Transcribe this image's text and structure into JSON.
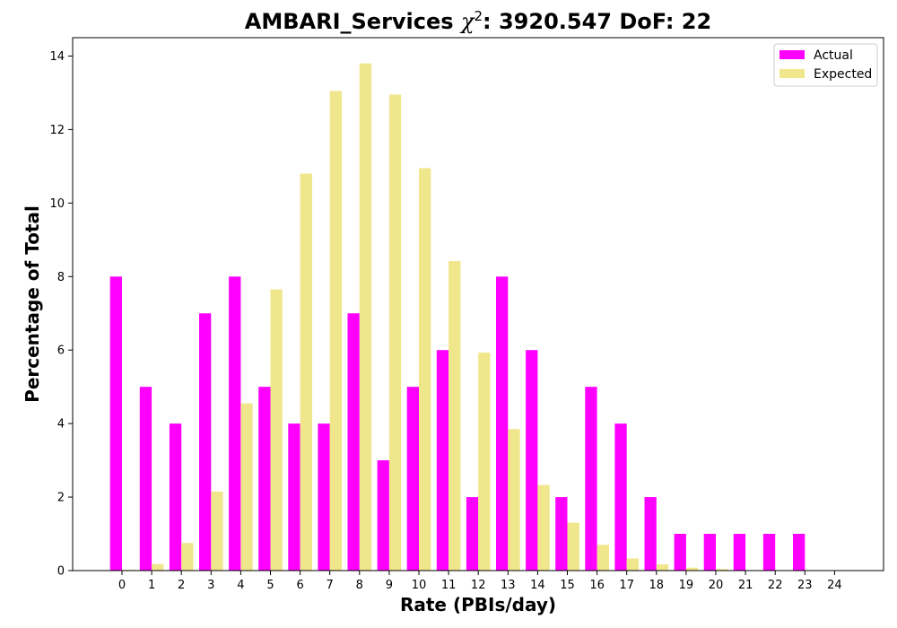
{
  "chart_data": {
    "type": "bar",
    "title_main": "AMBARI_Services ",
    "title_chi": "χ",
    "title_sup": "2",
    "title_rest": ": 3920.547 DoF: 22",
    "xlabel": "Rate (PBIs/day)",
    "ylabel": "Percentage of Total",
    "categories": [
      "0",
      "1",
      "2",
      "3",
      "4",
      "5",
      "6",
      "7",
      "8",
      "9",
      "10",
      "11",
      "12",
      "13",
      "14",
      "15",
      "16",
      "17",
      "18",
      "19",
      "20",
      "21",
      "22",
      "23",
      "24"
    ],
    "ylim": [
      0,
      14.5
    ],
    "yticks": [
      0,
      2,
      4,
      6,
      8,
      10,
      12,
      14
    ],
    "legend_position": "top-right",
    "series": [
      {
        "name": "Actual",
        "color": "#ff00ff",
        "values": [
          8,
          5,
          4,
          7,
          8,
          5,
          4,
          4,
          7,
          3,
          5,
          6,
          2,
          8,
          6,
          2,
          5,
          4,
          2,
          1,
          1,
          1,
          1,
          1,
          0
        ]
      },
      {
        "name": "Expected",
        "color": "#f0e68c",
        "values": [
          0.02,
          0.18,
          0.75,
          2.15,
          4.55,
          7.65,
          10.8,
          13.05,
          13.8,
          12.95,
          10.95,
          8.42,
          5.93,
          3.85,
          2.33,
          1.3,
          0.7,
          0.33,
          0.17,
          0.08,
          0.04,
          0.01,
          0.005,
          0.002,
          0.001
        ]
      }
    ]
  }
}
